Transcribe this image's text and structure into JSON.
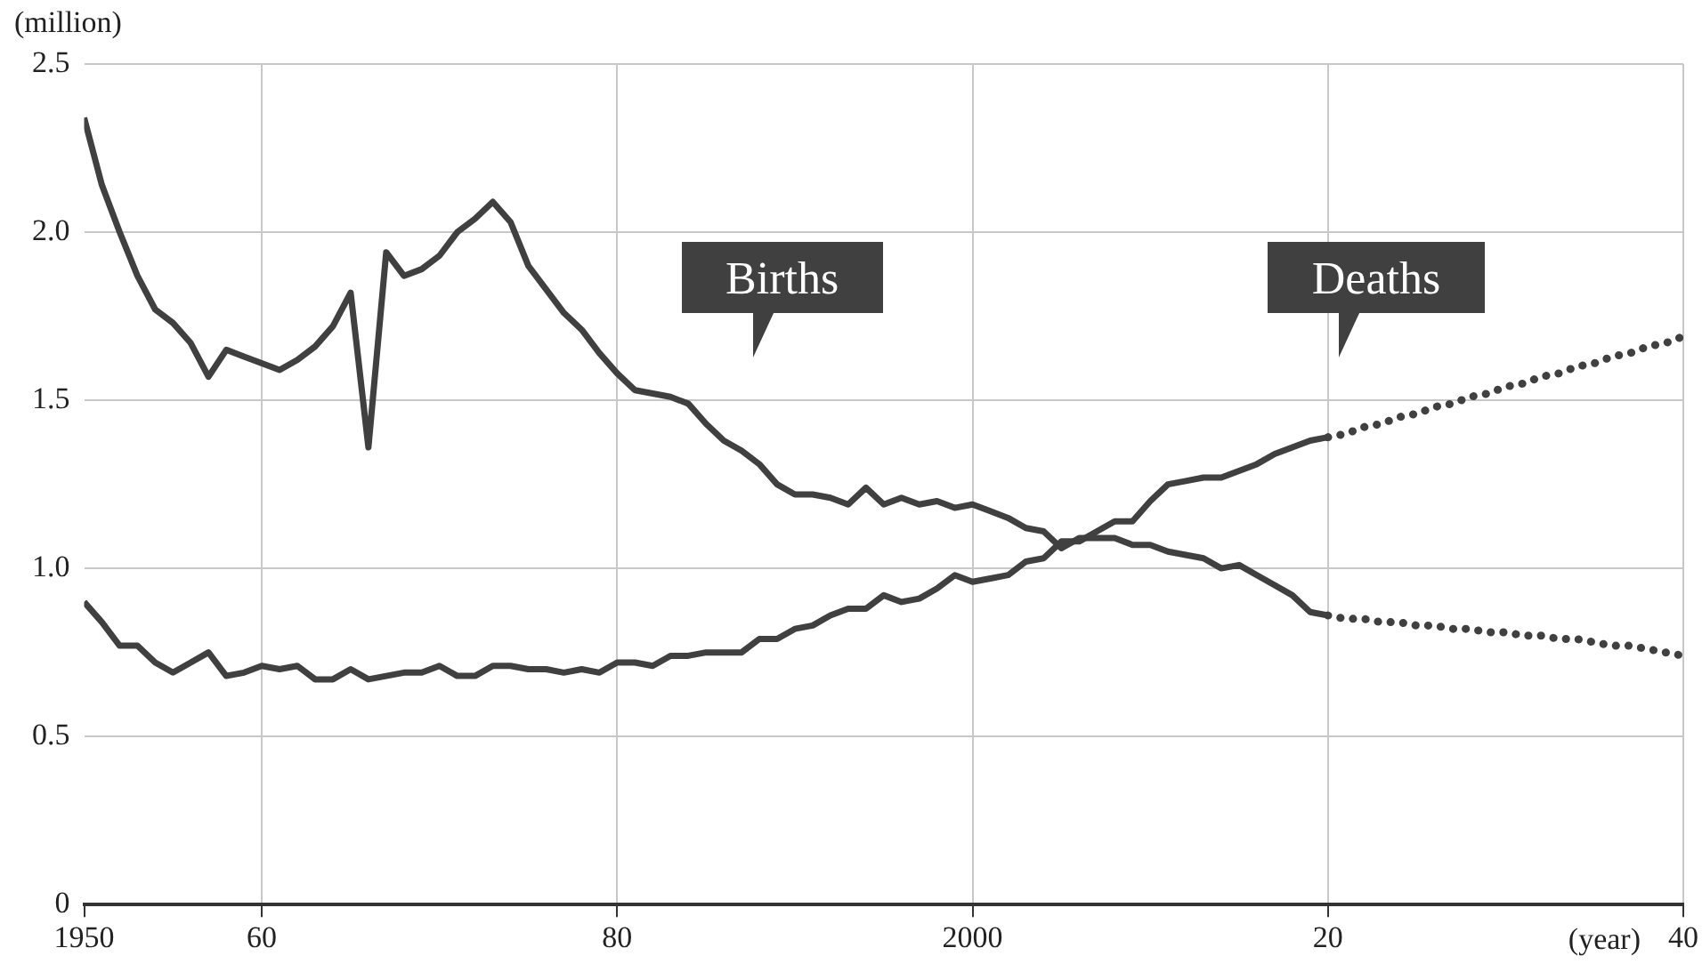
{
  "chart_data": {
    "type": "line",
    "ylabel": "(million)",
    "xlabel": "(year)",
    "xlim": [
      1950,
      2040
    ],
    "xticks": [
      {
        "value": 1950,
        "label": "1950"
      },
      {
        "value": 1960,
        "label": "60"
      },
      {
        "value": 1980,
        "label": "80"
      },
      {
        "value": 2000,
        "label": "2000"
      },
      {
        "value": 2020,
        "label": "20"
      },
      {
        "value": 2040,
        "label": "40"
      }
    ],
    "ylim": [
      0,
      2.5
    ],
    "yticks": [
      {
        "value": 0,
        "label": "0"
      },
      {
        "value": 0.5,
        "label": "0.5"
      },
      {
        "value": 1,
        "label": "1.0"
      },
      {
        "value": 1.5,
        "label": "1.5"
      },
      {
        "value": 2,
        "label": "2.0"
      },
      {
        "value": 2.5,
        "label": "2.5"
      }
    ],
    "grid": true,
    "legend": false,
    "marker": "none",
    "series": [
      {
        "name": "Births",
        "color": "#404040",
        "line_style": "solid",
        "x": [
          1950,
          1951,
          1952,
          1953,
          1954,
          1955,
          1956,
          1957,
          1958,
          1959,
          1960,
          1961,
          1962,
          1963,
          1964,
          1965,
          1966,
          1967,
          1968,
          1969,
          1970,
          1971,
          1972,
          1973,
          1974,
          1975,
          1976,
          1977,
          1978,
          1979,
          1980,
          1981,
          1982,
          1983,
          1984,
          1985,
          1986,
          1987,
          1988,
          1989,
          1990,
          1991,
          1992,
          1993,
          1994,
          1995,
          1996,
          1997,
          1998,
          1999,
          2000,
          2001,
          2002,
          2003,
          2004,
          2005,
          2006,
          2007,
          2008,
          2009,
          2010,
          2011,
          2012,
          2013,
          2014,
          2015,
          2016,
          2017,
          2018,
          2019,
          2020
        ],
        "values": [
          2.34,
          2.14,
          2.0,
          1.87,
          1.77,
          1.73,
          1.67,
          1.57,
          1.65,
          1.63,
          1.61,
          1.59,
          1.62,
          1.66,
          1.72,
          1.82,
          1.36,
          1.94,
          1.87,
          1.89,
          1.93,
          2.0,
          2.04,
          2.09,
          2.03,
          1.9,
          1.83,
          1.76,
          1.71,
          1.64,
          1.58,
          1.53,
          1.52,
          1.51,
          1.49,
          1.43,
          1.38,
          1.35,
          1.31,
          1.25,
          1.22,
          1.22,
          1.21,
          1.19,
          1.24,
          1.19,
          1.21,
          1.19,
          1.2,
          1.18,
          1.19,
          1.17,
          1.15,
          1.12,
          1.11,
          1.06,
          1.09,
          1.09,
          1.09,
          1.07,
          1.07,
          1.05,
          1.04,
          1.03,
          1.0,
          1.01,
          0.98,
          0.95,
          0.92,
          0.87,
          0.86
        ]
      },
      {
        "name": "Deaths",
        "color": "#404040",
        "line_style": "solid",
        "x": [
          1950,
          1951,
          1952,
          1953,
          1954,
          1955,
          1956,
          1957,
          1958,
          1959,
          1960,
          1961,
          1962,
          1963,
          1964,
          1965,
          1966,
          1967,
          1968,
          1969,
          1970,
          1971,
          1972,
          1973,
          1974,
          1975,
          1976,
          1977,
          1978,
          1979,
          1980,
          1981,
          1982,
          1983,
          1984,
          1985,
          1986,
          1987,
          1988,
          1989,
          1990,
          1991,
          1992,
          1993,
          1994,
          1995,
          1996,
          1997,
          1998,
          1999,
          2000,
          2001,
          2002,
          2003,
          2004,
          2005,
          2006,
          2007,
          2008,
          2009,
          2010,
          2011,
          2012,
          2013,
          2014,
          2015,
          2016,
          2017,
          2018,
          2019,
          2020
        ],
        "values": [
          0.9,
          0.84,
          0.77,
          0.77,
          0.72,
          0.69,
          0.72,
          0.75,
          0.68,
          0.69,
          0.71,
          0.7,
          0.71,
          0.67,
          0.67,
          0.7,
          0.67,
          0.68,
          0.69,
          0.69,
          0.71,
          0.68,
          0.68,
          0.71,
          0.71,
          0.7,
          0.7,
          0.69,
          0.7,
          0.69,
          0.72,
          0.72,
          0.71,
          0.74,
          0.74,
          0.75,
          0.75,
          0.75,
          0.79,
          0.79,
          0.82,
          0.83,
          0.86,
          0.88,
          0.88,
          0.92,
          0.9,
          0.91,
          0.94,
          0.98,
          0.96,
          0.97,
          0.98,
          1.02,
          1.03,
          1.08,
          1.08,
          1.11,
          1.14,
          1.14,
          1.2,
          1.25,
          1.26,
          1.27,
          1.27,
          1.29,
          1.31,
          1.34,
          1.36,
          1.38,
          1.39
        ]
      },
      {
        "color": "#404040",
        "line_style": "dotted",
        "x": [
          2020,
          2021,
          2022,
          2023,
          2024,
          2025,
          2026,
          2027,
          2028,
          2029,
          2030,
          2031,
          2032,
          2033,
          2034,
          2035,
          2036,
          2037,
          2038,
          2039,
          2040
        ],
        "values": [
          0.86,
          0.85,
          0.85,
          0.84,
          0.84,
          0.83,
          0.83,
          0.82,
          0.82,
          0.81,
          0.81,
          0.8,
          0.8,
          0.79,
          0.79,
          0.78,
          0.77,
          0.77,
          0.76,
          0.75,
          0.74
        ]
      },
      {
        "color": "#404040",
        "line_style": "dotted",
        "x": [
          2020,
          2021,
          2022,
          2023,
          2024,
          2025,
          2026,
          2027,
          2028,
          2029,
          2030,
          2031,
          2032,
          2033,
          2034,
          2035,
          2036,
          2037,
          2038,
          2039,
          2040
        ],
        "values": [
          1.39,
          1.4,
          1.42,
          1.43,
          1.45,
          1.46,
          1.48,
          1.49,
          1.51,
          1.52,
          1.54,
          1.55,
          1.57,
          1.58,
          1.6,
          1.61,
          1.63,
          1.64,
          1.66,
          1.67,
          1.69
        ]
      }
    ]
  }
}
